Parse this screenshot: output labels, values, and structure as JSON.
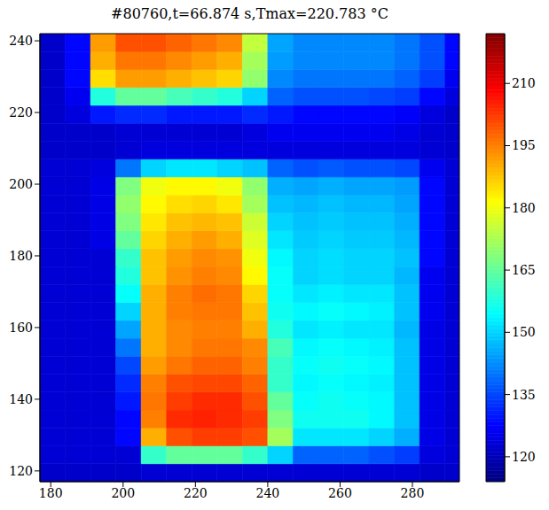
{
  "chart_data": {
    "type": "heatmap",
    "title": "#80760,t=66.874 s,Tmax=220.783 °C",
    "xlim": [
      177,
      293
    ],
    "ylim": [
      117,
      242
    ],
    "xticks": [
      180,
      200,
      220,
      240,
      260,
      280
    ],
    "yticks": [
      120,
      140,
      160,
      180,
      200,
      220,
      240
    ],
    "x_edges": [
      177,
      184,
      191,
      198,
      205,
      212,
      219,
      226,
      233,
      240,
      247,
      254,
      261,
      268,
      275,
      282,
      289,
      293
    ],
    "y_edges": [
      117,
      122,
      127,
      132,
      137,
      142,
      147,
      152,
      157,
      162,
      167,
      172,
      177,
      182,
      187,
      192,
      197,
      202,
      207,
      212,
      217,
      222,
      227,
      232,
      237,
      242
    ],
    "values": [
      [
        122,
        122,
        122,
        122,
        123,
        123,
        123,
        123,
        123,
        123,
        123,
        123,
        123,
        123,
        123,
        122,
        122
      ],
      [
        123,
        123,
        123,
        123,
        160,
        165,
        165,
        165,
        160,
        150,
        138,
        138,
        138,
        136,
        134,
        124,
        123
      ],
      [
        123,
        123,
        123,
        128,
        190,
        200,
        202,
        202,
        200,
        172,
        152,
        152,
        152,
        150,
        146,
        125,
        123
      ],
      [
        123,
        123,
        123,
        128,
        195,
        204,
        205,
        204,
        202,
        168,
        156,
        156,
        156,
        154,
        148,
        125,
        123
      ],
      [
        123,
        123,
        123,
        130,
        196,
        202,
        204,
        204,
        200,
        165,
        155,
        156,
        155,
        154,
        148,
        125,
        123
      ],
      [
        123,
        123,
        123,
        132,
        195,
        200,
        201,
        201,
        198,
        160,
        154,
        155,
        154,
        153,
        148,
        125,
        123
      ],
      [
        123,
        123,
        123,
        135,
        192,
        196,
        198,
        198,
        195,
        160,
        155,
        156,
        155,
        154,
        148,
        125,
        123
      ],
      [
        123,
        123,
        123,
        140,
        190,
        194,
        196,
        196,
        194,
        162,
        154,
        155,
        154,
        153,
        148,
        125,
        123
      ],
      [
        123,
        123,
        123,
        145,
        190,
        194,
        195,
        195,
        190,
        158,
        152,
        153,
        152,
        152,
        147,
        125,
        123
      ],
      [
        123,
        123,
        123,
        150,
        190,
        195,
        196,
        196,
        188,
        156,
        154,
        155,
        154,
        153,
        148,
        126,
        123
      ],
      [
        123,
        123,
        123,
        155,
        190,
        195,
        197,
        196,
        186,
        155,
        152,
        153,
        152,
        152,
        148,
        126,
        123
      ],
      [
        123,
        123,
        123,
        158,
        188,
        193,
        195,
        194,
        182,
        155,
        150,
        151,
        150,
        150,
        147,
        126,
        123
      ],
      [
        123,
        123,
        123,
        160,
        188,
        192,
        194,
        193,
        180,
        154,
        150,
        151,
        150,
        150,
        148,
        128,
        123
      ],
      [
        123,
        123,
        125,
        165,
        186,
        190,
        192,
        190,
        178,
        152,
        149,
        150,
        149,
        149,
        147,
        128,
        123
      ],
      [
        123,
        123,
        125,
        168,
        184,
        188,
        189,
        188,
        176,
        150,
        148,
        149,
        148,
        148,
        146,
        128,
        123
      ],
      [
        123,
        123,
        125,
        170,
        182,
        185,
        186,
        184,
        172,
        148,
        147,
        148,
        147,
        147,
        145,
        128,
        123
      ],
      [
        123,
        123,
        125,
        168,
        180,
        182,
        182,
        180,
        170,
        146,
        145,
        146,
        145,
        145,
        144,
        128,
        123
      ],
      [
        123,
        123,
        124,
        140,
        150,
        152,
        152,
        150,
        148,
        138,
        136,
        137,
        136,
        136,
        135,
        126,
        123
      ],
      [
        122,
        122,
        122,
        123,
        124,
        124,
        124,
        124,
        124,
        124,
        124,
        124,
        124,
        124,
        124,
        123,
        122
      ],
      [
        122,
        122,
        122,
        123,
        123,
        123,
        123,
        123,
        124,
        126,
        126,
        126,
        126,
        126,
        125,
        123,
        122
      ],
      [
        122,
        124,
        130,
        132,
        132,
        130,
        130,
        130,
        132,
        130,
        128,
        128,
        128,
        128,
        127,
        124,
        122
      ],
      [
        122,
        126,
        158,
        165,
        165,
        162,
        160,
        158,
        150,
        138,
        136,
        136,
        136,
        135,
        134,
        128,
        124
      ],
      [
        122,
        128,
        185,
        192,
        192,
        190,
        188,
        186,
        170,
        142,
        140,
        140,
        140,
        140,
        138,
        134,
        126
      ],
      [
        122,
        128,
        190,
        196,
        196,
        194,
        192,
        190,
        172,
        144,
        142,
        142,
        142,
        142,
        140,
        136,
        128
      ],
      [
        122,
        128,
        192,
        200,
        200,
        198,
        196,
        194,
        175,
        145,
        142,
        142,
        142,
        142,
        140,
        136,
        128
      ]
    ],
    "colorbar_lim": [
      114,
      222
    ],
    "colorbar_ticks": [
      120,
      135,
      150,
      165,
      180,
      195,
      210
    ]
  }
}
